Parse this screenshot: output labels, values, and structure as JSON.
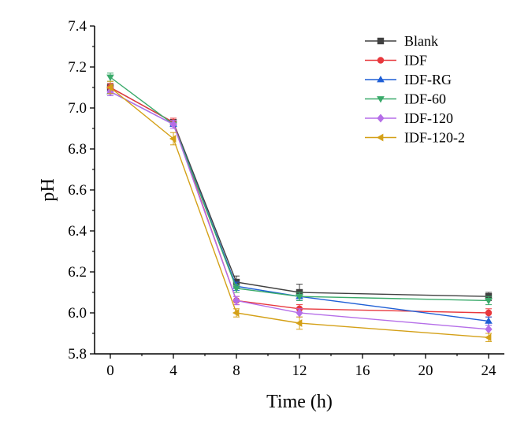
{
  "chart_data": {
    "type": "line",
    "title": "",
    "xlabel": "Time (h)",
    "ylabel": "pH",
    "xlim": [
      -1,
      25
    ],
    "ylim": [
      5.8,
      7.4
    ],
    "x_ticks": [
      0,
      4,
      8,
      12,
      16,
      20,
      24
    ],
    "y_ticks": [
      5.8,
      6.0,
      6.2,
      6.4,
      6.6,
      6.8,
      7.0,
      7.2,
      7.4
    ],
    "y_tick_labels": [
      "5.8",
      "6.0",
      "6.2",
      "6.4",
      "6.6",
      "6.8",
      "7.0",
      "7.2",
      "7.4"
    ],
    "grid": false,
    "legend_position": "top-right",
    "x": [
      0,
      4,
      8,
      12,
      24
    ],
    "series": [
      {
        "name": "Blank",
        "color": "#404040",
        "marker": "square",
        "values": [
          7.1,
          6.93,
          6.15,
          6.1,
          6.08
        ],
        "errors": [
          0.02,
          0.02,
          0.03,
          0.04,
          0.02
        ]
      },
      {
        "name": "IDF",
        "color": "#e8383d",
        "marker": "circle",
        "values": [
          7.1,
          6.93,
          6.06,
          6.02,
          6.0
        ],
        "errors": [
          0.02,
          0.02,
          0.02,
          0.02,
          0.02
        ]
      },
      {
        "name": "IDF-RG",
        "color": "#1f5fd6",
        "marker": "triangle-up",
        "values": [
          7.08,
          6.92,
          6.13,
          6.08,
          5.96
        ],
        "errors": [
          0.02,
          0.02,
          0.02,
          0.02,
          0.02
        ]
      },
      {
        "name": "IDF-60",
        "color": "#3aaa6a",
        "marker": "triangle-down",
        "values": [
          7.15,
          6.92,
          6.12,
          6.08,
          6.06
        ],
        "errors": [
          0.02,
          0.02,
          0.02,
          0.02,
          0.02
        ]
      },
      {
        "name": "IDF-120",
        "color": "#b56ee8",
        "marker": "diamond",
        "values": [
          7.08,
          6.92,
          6.06,
          6.0,
          5.92
        ],
        "errors": [
          0.02,
          0.02,
          0.02,
          0.02,
          0.02
        ]
      },
      {
        "name": "IDF-120-2",
        "color": "#d4a017",
        "marker": "triangle-left",
        "values": [
          7.1,
          6.85,
          6.0,
          5.95,
          5.88
        ],
        "errors": [
          0.03,
          0.03,
          0.02,
          0.03,
          0.02
        ]
      }
    ]
  }
}
